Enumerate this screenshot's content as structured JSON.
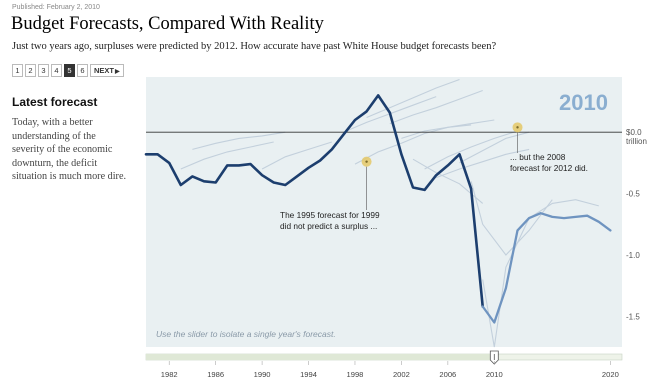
{
  "header": {
    "published": "Published: February 2, 2010",
    "title": "Budget Forecasts, Compared With Reality",
    "subtitle": "Just two years ago, surpluses were predicted by 2012. How accurate have past White House budget forecasts been?"
  },
  "pager": {
    "pages": [
      "1",
      "2",
      "3",
      "4",
      "5",
      "6"
    ],
    "active_index": 4,
    "next_label": "NEXT"
  },
  "sidebar": {
    "heading": "Latest forecast",
    "body": "Today, with a better understanding of the severity of the economic downturn, the deficit situation is much more dire."
  },
  "chart": {
    "year_label": "2010",
    "note": "Use the slider to isolate a single year's forecast.",
    "zero_label_line1": "$0.0",
    "zero_label_line2": "trillion",
    "annotation_1995_line1": "The 1995 forecast for 1999",
    "annotation_1995_line2": "did not predict a surplus ...",
    "annotation_2008_line1": "... but the 2008",
    "annotation_2008_line2": "forecast for 2012 did.",
    "slider_value": 2010
  },
  "chart_data": {
    "type": "line",
    "title": "Budget Forecasts, Compared With Reality",
    "ylabel": "trillion",
    "xlim": [
      1980,
      2021
    ],
    "ylim": [
      -1.75,
      0.45
    ],
    "y_ticks": [
      {
        "value": 0,
        "label": "$0.0"
      },
      {
        "value": -0.5,
        "label": "-0.5"
      },
      {
        "value": -1.0,
        "label": "-1.0"
      },
      {
        "value": -1.5,
        "label": "-1.5"
      }
    ],
    "x_ticks": [
      1982,
      1986,
      1990,
      1994,
      1998,
      2002,
      2006,
      2010,
      2020
    ],
    "grid": false,
    "colors": {
      "actual": "#1c3e6e",
      "forecast_highlight": "#6f94c0",
      "forecast_faint": "#c3d0dc",
      "panel": "#e9f0f2",
      "marker": "#e4c867"
    },
    "series": [
      {
        "role": "actual",
        "x": [
          1980,
          1981,
          1982,
          1983,
          1984,
          1985,
          1986,
          1987,
          1988,
          1989,
          1990,
          1991,
          1992,
          1993,
          1994,
          1995,
          1996,
          1997,
          1998,
          1999,
          2000,
          2001,
          2002,
          2003,
          2004,
          2005,
          2006,
          2007,
          2008,
          2009
        ],
        "values": [
          -0.18,
          -0.18,
          -0.25,
          -0.43,
          -0.36,
          -0.4,
          -0.41,
          -0.27,
          -0.27,
          -0.26,
          -0.35,
          -0.41,
          -0.43,
          -0.36,
          -0.29,
          -0.23,
          -0.14,
          -0.02,
          0.1,
          0.17,
          0.3,
          0.16,
          -0.18,
          -0.45,
          -0.47,
          -0.35,
          -0.27,
          -0.18,
          -0.46,
          -1.42
        ]
      },
      {
        "role": "forecast-2010",
        "x": [
          2009,
          2010,
          2011,
          2012,
          2013,
          2014,
          2015,
          2016,
          2017,
          2018,
          2019,
          2020
        ],
        "values": [
          -1.42,
          -1.55,
          -1.27,
          -0.8,
          -0.7,
          -0.66,
          -0.69,
          -0.7,
          -0.69,
          -0.68,
          -0.73,
          -0.8
        ]
      },
      {
        "role": "past-forecast",
        "x": [
          1998,
          2000,
          2002,
          2004,
          2006,
          2008
        ],
        "values": [
          -0.26,
          -0.16,
          -0.09,
          -0.01,
          0.04,
          0.06
        ]
      },
      {
        "role": "past-forecast",
        "x": [
          1990,
          1992,
          1994,
          1996
        ],
        "values": [
          -0.3,
          -0.2,
          -0.14,
          -0.08
        ]
      },
      {
        "role": "past-forecast",
        "x": [
          1983,
          1985,
          1987,
          1989,
          1991
        ],
        "values": [
          -0.3,
          -0.22,
          -0.16,
          -0.12,
          -0.08
        ]
      },
      {
        "role": "past-forecast",
        "x": [
          1984,
          1986,
          1988,
          1990,
          1992
        ],
        "values": [
          -0.14,
          -0.09,
          -0.05,
          -0.03,
          0.0
        ]
      },
      {
        "role": "past-forecast",
        "x": [
          1997,
          1999,
          2001,
          2003,
          2005
        ],
        "values": [
          0.0,
          0.08,
          0.15,
          0.22,
          0.29
        ]
      },
      {
        "role": "past-forecast",
        "x": [
          1999,
          2001,
          2003,
          2005,
          2007
        ],
        "values": [
          0.12,
          0.2,
          0.28,
          0.36,
          0.43
        ]
      },
      {
        "role": "past-forecast",
        "x": [
          2001,
          2003,
          2005,
          2007,
          2009
        ],
        "values": [
          0.07,
          0.14,
          0.2,
          0.27,
          0.34
        ]
      },
      {
        "role": "past-forecast",
        "x": [
          2002,
          2004,
          2006,
          2008,
          2010
        ],
        "values": [
          -0.05,
          0.01,
          0.04,
          0.07,
          0.1
        ]
      },
      {
        "role": "past-forecast",
        "x": [
          2004,
          2006,
          2008,
          2010,
          2012
        ],
        "values": [
          -0.3,
          -0.2,
          -0.12,
          -0.05,
          0.01
        ]
      },
      {
        "role": "past-forecast",
        "x": [
          2005,
          2007,
          2009,
          2011,
          2013
        ],
        "values": [
          -0.37,
          -0.3,
          -0.24,
          -0.18,
          -0.14
        ]
      },
      {
        "role": "past-forecast",
        "x": [
          2007,
          2009,
          2011,
          2013
        ],
        "values": [
          -0.25,
          -0.15,
          -0.05,
          0.0
        ]
      },
      {
        "role": "past-forecast",
        "x": [
          2008,
          2009,
          2011,
          2013,
          2015
        ],
        "values": [
          -0.4,
          -0.75,
          -1.0,
          -0.8,
          -0.55
        ]
      },
      {
        "role": "past-forecast",
        "x": [
          2009,
          2010,
          2011,
          2013,
          2015,
          2017,
          2019
        ],
        "values": [
          -1.2,
          -1.75,
          -1.1,
          -0.7,
          -0.58,
          -0.55,
          -0.6
        ]
      },
      {
        "role": "past-forecast",
        "x": [
          2003,
          2005,
          2007,
          2009
        ],
        "values": [
          -0.22,
          -0.33,
          -0.42,
          -0.58
        ]
      }
    ],
    "highlight_points": [
      {
        "x": 1999,
        "y": -0.24,
        "label": "The 1995 forecast for 1999 did not predict a surplus ..."
      },
      {
        "x": 2012,
        "y": 0.04,
        "label": "... but the 2008 forecast for 2012 did."
      }
    ]
  }
}
